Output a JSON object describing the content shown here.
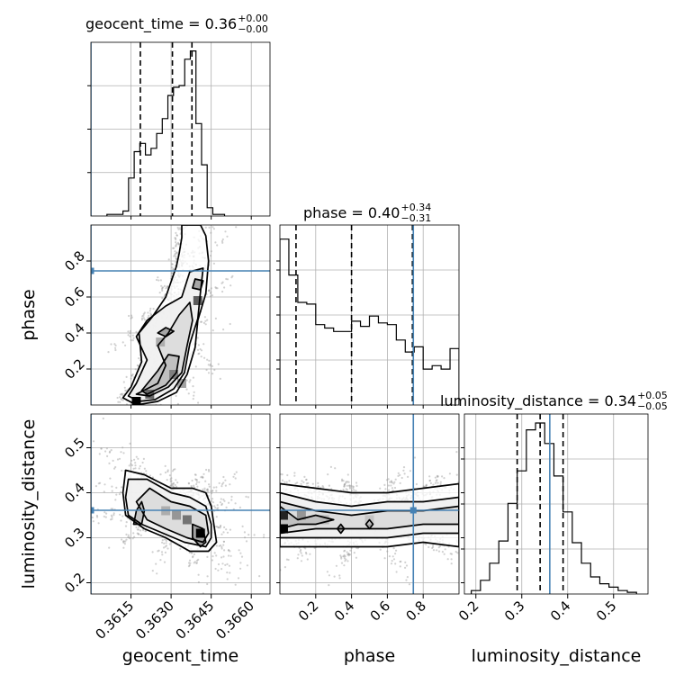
{
  "chart_data": {
    "type": "corner",
    "parameters": [
      "geocent_time",
      "phase",
      "luminosity_distance"
    ],
    "injection": {
      "geocent_time": 0.36,
      "phase": 0.745,
      "luminosity_distance": 0.361,
      "color": "#4682b4"
    },
    "axes": {
      "geocent_time": {
        "range": [
          0.36,
          0.3667
        ],
        "ticks": [
          0.3615,
          0.363,
          0.3645,
          0.366
        ],
        "tick_labels": [
          "0.3615",
          "0.3630",
          "0.3645",
          "0.3660"
        ]
      },
      "phase": {
        "range": [
          0.0,
          1.0
        ],
        "ticks": [
          0.2,
          0.4,
          0.6,
          0.8
        ],
        "tick_labels": [
          "0.2",
          "0.4",
          "0.6",
          "0.8"
        ]
      },
      "luminosity_distance": {
        "range": [
          0.175,
          0.575
        ],
        "ticks": [
          0.2,
          0.3,
          0.4,
          0.5
        ],
        "tick_labels": [
          "0.2",
          "0.3",
          "0.4",
          "0.5"
        ]
      }
    },
    "diag": [
      {
        "param": "geocent_time",
        "title": "geocent_time = 0.36",
        "sup": "+0.00",
        "sub": "−0.00",
        "quantiles": [
          0.36185,
          0.36305,
          0.36378
        ],
        "bin_edges": [
          0.3606,
          0.3612,
          0.36141,
          0.36162,
          0.36183,
          0.36204,
          0.36225,
          0.36246,
          0.36267,
          0.36288,
          0.36309,
          0.3633,
          0.36351,
          0.36372,
          0.36393,
          0.36414,
          0.36435,
          0.36456,
          0.365
        ],
        "counts": [
          0.01,
          0.03,
          0.23,
          0.39,
          0.44,
          0.37,
          0.41,
          0.5,
          0.59,
          0.73,
          0.78,
          0.79,
          0.95,
          1.0,
          0.56,
          0.31,
          0.05,
          0.01
        ]
      },
      {
        "param": "phase",
        "title": "phase = 0.40",
        "sup": "+0.34",
        "sub": "−0.31",
        "quantiles": [
          0.09,
          0.4,
          0.74
        ],
        "bin_edges": [
          0.0,
          0.05,
          0.1,
          0.15,
          0.2,
          0.25,
          0.3,
          0.35,
          0.4,
          0.45,
          0.5,
          0.55,
          0.6,
          0.65,
          0.7,
          0.75,
          0.8,
          0.85,
          0.9,
          0.95,
          1.0
        ],
        "counts": [
          0.97,
          0.76,
          0.6,
          0.59,
          0.47,
          0.45,
          0.43,
          0.43,
          0.49,
          0.46,
          0.52,
          0.48,
          0.47,
          0.38,
          0.31,
          0.34,
          0.21,
          0.23,
          0.21,
          0.33
        ]
      },
      {
        "param": "luminosity_distance",
        "title": "luminosity_distance = 0.34",
        "sup": "+0.05",
        "sub": "−0.05",
        "quantiles": [
          0.29,
          0.34,
          0.39
        ],
        "bin_edges": [
          0.19,
          0.21,
          0.23,
          0.25,
          0.27,
          0.29,
          0.31,
          0.33,
          0.35,
          0.37,
          0.39,
          0.41,
          0.43,
          0.45,
          0.47,
          0.49,
          0.51,
          0.53,
          0.55
        ],
        "counts": [
          0.02,
          0.08,
          0.18,
          0.31,
          0.53,
          0.72,
          0.96,
          1.0,
          0.88,
          0.69,
          0.48,
          0.3,
          0.18,
          0.1,
          0.06,
          0.04,
          0.02,
          0.01
        ]
      }
    ],
    "pairs": [
      {
        "x": "geocent_time",
        "y": "phase",
        "contours": [
          [
            [
              0.3625,
              0.02
            ],
            [
              0.3632,
              0.07
            ],
            [
              0.3636,
              0.17
            ],
            [
              0.3639,
              0.32
            ],
            [
              0.364,
              0.47
            ],
            [
              0.3643,
              0.62
            ],
            [
              0.3644,
              0.8
            ],
            [
              0.3643,
              0.94
            ],
            [
              0.3641,
              1.0
            ],
            [
              0.3634,
              1.0
            ],
            [
              0.3634,
              0.93
            ],
            [
              0.3633,
              0.84
            ],
            [
              0.3632,
              0.77
            ],
            [
              0.3628,
              0.6
            ],
            [
              0.3623,
              0.49
            ],
            [
              0.3618,
              0.4
            ],
            [
              0.3619,
              0.24
            ],
            [
              0.3615,
              0.1
            ],
            [
              0.3612,
              0.04
            ],
            [
              0.3617,
              0.0
            ]
          ],
          [
            [
              0.3624,
              0.03
            ],
            [
              0.3631,
              0.09
            ],
            [
              0.3635,
              0.18
            ],
            [
              0.3637,
              0.34
            ],
            [
              0.364,
              0.48
            ],
            [
              0.3641,
              0.63
            ],
            [
              0.3642,
              0.76
            ],
            [
              0.3637,
              0.74
            ],
            [
              0.3634,
              0.6
            ],
            [
              0.3628,
              0.55
            ],
            [
              0.3621,
              0.47
            ],
            [
              0.3617,
              0.38
            ],
            [
              0.3621,
              0.25
            ],
            [
              0.3617,
              0.12
            ],
            [
              0.3614,
              0.05
            ],
            [
              0.3618,
              0.02
            ]
          ],
          [
            [
              0.3622,
              0.05
            ],
            [
              0.3629,
              0.1
            ],
            [
              0.3634,
              0.18
            ],
            [
              0.3636,
              0.33
            ],
            [
              0.3638,
              0.47
            ],
            [
              0.3637,
              0.57
            ],
            [
              0.3633,
              0.5
            ],
            [
              0.3629,
              0.4
            ],
            [
              0.3625,
              0.33
            ],
            [
              0.3628,
              0.22
            ],
            [
              0.3625,
              0.12
            ],
            [
              0.3617,
              0.06
            ]
          ],
          [
            [
              0.3621,
              0.06
            ],
            [
              0.3628,
              0.11
            ],
            [
              0.3632,
              0.18
            ],
            [
              0.3633,
              0.27
            ],
            [
              0.3629,
              0.28
            ],
            [
              0.3625,
              0.19
            ],
            [
              0.3619,
              0.08
            ]
          ],
          [
            [
              0.3641,
              0.64
            ],
            [
              0.3642,
              0.69
            ],
            [
              0.3639,
              0.7
            ],
            [
              0.3638,
              0.65
            ]
          ],
          [
            [
              0.3628,
              0.38
            ],
            [
              0.3631,
              0.41
            ],
            [
              0.3628,
              0.43
            ],
            [
              0.3625,
              0.4
            ]
          ]
        ],
        "dense_bins": [
          [
            0.3617,
            0.02,
            1.0
          ],
          [
            0.3622,
            0.06,
            0.55
          ],
          [
            0.3631,
            0.17,
            0.45
          ],
          [
            0.364,
            0.58,
            0.6
          ],
          [
            0.3634,
            0.12,
            0.3
          ],
          [
            0.3626,
            0.35,
            0.25
          ]
        ]
      },
      {
        "x": "geocent_time",
        "y": "luminosity_distance",
        "contours": [
          [
            [
              0.3612,
              0.4
            ],
            [
              0.3613,
              0.45
            ],
            [
              0.362,
              0.44
            ],
            [
              0.363,
              0.41
            ],
            [
              0.3638,
              0.41
            ],
            [
              0.3643,
              0.4
            ],
            [
              0.3645,
              0.37
            ],
            [
              0.3646,
              0.33
            ],
            [
              0.3647,
              0.29
            ],
            [
              0.3644,
              0.27
            ],
            [
              0.3637,
              0.27
            ],
            [
              0.3628,
              0.3
            ],
            [
              0.362,
              0.32
            ],
            [
              0.3613,
              0.35
            ]
          ],
          [
            [
              0.3613,
              0.39
            ],
            [
              0.3614,
              0.43
            ],
            [
              0.3621,
              0.43
            ],
            [
              0.363,
              0.4
            ],
            [
              0.3637,
              0.39
            ],
            [
              0.3643,
              0.37
            ],
            [
              0.3645,
              0.33
            ],
            [
              0.3645,
              0.3
            ],
            [
              0.3643,
              0.28
            ],
            [
              0.3635,
              0.29
            ],
            [
              0.3627,
              0.31
            ],
            [
              0.3619,
              0.33
            ],
            [
              0.3614,
              0.35
            ]
          ],
          [
            [
              0.3617,
              0.38
            ],
            [
              0.3622,
              0.41
            ],
            [
              0.363,
              0.38
            ],
            [
              0.3637,
              0.37
            ],
            [
              0.3643,
              0.35
            ],
            [
              0.3644,
              0.31
            ],
            [
              0.3642,
              0.29
            ],
            [
              0.3636,
              0.3
            ],
            [
              0.3628,
              0.32
            ],
            [
              0.3621,
              0.34
            ]
          ],
          [
            [
              0.3619,
              0.33
            ],
            [
              0.362,
              0.36
            ],
            [
              0.3619,
              0.38
            ],
            [
              0.3617,
              0.36
            ],
            [
              0.3616,
              0.33
            ]
          ],
          [
            [
              0.3638,
              0.33
            ],
            [
              0.3642,
              0.32
            ],
            [
              0.3643,
              0.29
            ],
            [
              0.3641,
              0.28
            ],
            [
              0.3638,
              0.3
            ]
          ]
        ],
        "dense_bins": [
          [
            0.3641,
            0.31,
            1.0
          ],
          [
            0.3636,
            0.34,
            0.5
          ],
          [
            0.3632,
            0.35,
            0.35
          ],
          [
            0.3628,
            0.36,
            0.25
          ]
        ]
      },
      {
        "x": "phase",
        "y": "luminosity_distance",
        "contours": [
          [
            [
              0.0,
              0.28
            ],
            [
              0.0,
              0.42
            ],
            [
              0.2,
              0.41
            ],
            [
              0.4,
              0.4
            ],
            [
              0.6,
              0.4
            ],
            [
              0.8,
              0.41
            ],
            [
              1.0,
              0.42
            ],
            [
              1.0,
              0.28
            ],
            [
              0.8,
              0.29
            ],
            [
              0.6,
              0.28
            ],
            [
              0.4,
              0.28
            ],
            [
              0.2,
              0.28
            ]
          ],
          [
            [
              0.0,
              0.3
            ],
            [
              0.0,
              0.4
            ],
            [
              0.2,
              0.38
            ],
            [
              0.4,
              0.37
            ],
            [
              0.6,
              0.38
            ],
            [
              0.8,
              0.38
            ],
            [
              1.0,
              0.39
            ],
            [
              1.0,
              0.31
            ],
            [
              0.8,
              0.31
            ],
            [
              0.6,
              0.3
            ],
            [
              0.4,
              0.3
            ],
            [
              0.2,
              0.3
            ]
          ],
          [
            [
              0.0,
              0.31
            ],
            [
              0.0,
              0.38
            ],
            [
              0.2,
              0.36
            ],
            [
              0.4,
              0.35
            ],
            [
              0.6,
              0.36
            ],
            [
              0.8,
              0.36
            ],
            [
              1.0,
              0.37
            ],
            [
              1.0,
              0.33
            ],
            [
              0.8,
              0.33
            ],
            [
              0.6,
              0.32
            ],
            [
              0.4,
              0.32
            ],
            [
              0.2,
              0.32
            ]
          ],
          [
            [
              0.0,
              0.32
            ],
            [
              0.0,
              0.37
            ],
            [
              0.1,
              0.34
            ],
            [
              0.2,
              0.35
            ],
            [
              0.3,
              0.34
            ],
            [
              0.2,
              0.33
            ],
            [
              0.1,
              0.33
            ]
          ],
          [
            [
              0.5,
              0.32
            ],
            [
              0.52,
              0.33
            ],
            [
              0.5,
              0.34
            ],
            [
              0.48,
              0.33
            ]
          ],
          [
            [
              0.34,
              0.31
            ],
            [
              0.36,
              0.32
            ],
            [
              0.34,
              0.33
            ],
            [
              0.32,
              0.32
            ]
          ]
        ],
        "dense_bins": [
          [
            0.02,
            0.32,
            1.0
          ],
          [
            0.02,
            0.35,
            0.85
          ],
          [
            0.12,
            0.35,
            0.35
          ],
          [
            0.25,
            0.34,
            0.2
          ],
          [
            0.5,
            0.34,
            0.15
          ]
        ]
      }
    ],
    "grid": true,
    "colors": {
      "line": "#000000",
      "truth": "#4682b4",
      "grid": "#b0b0b0",
      "scatter": "#9a9a9a"
    }
  }
}
